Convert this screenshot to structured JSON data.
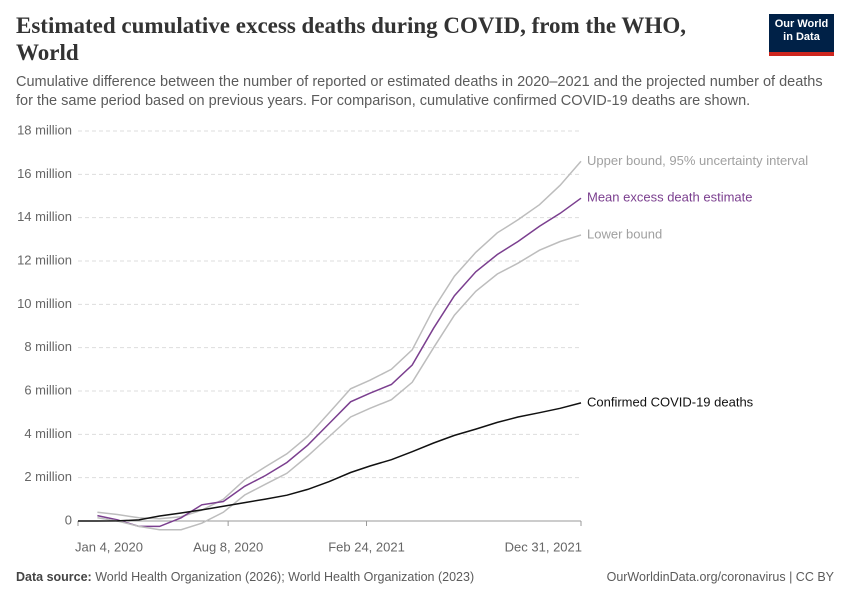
{
  "chart_data": {
    "type": "line",
    "title": "Estimated cumulative excess deaths during COVID, from the WHO, World",
    "subtitle": "Cumulative difference between the number of reported or estimated deaths in 2020–2021 and the projected number of deaths for the same period based on previous years. For comparison, cumulative confirmed COVID-19 deaths are shown.",
    "logo": "Our World in Data",
    "source_label": "Data source:",
    "source": "World Health Organization (2026); World Health Organization (2023)",
    "url": "OurWorldinData.org/coronavirus | CC BY",
    "x": [
      "2020-01-04",
      "2020-02-01",
      "2020-03-01",
      "2020-04-01",
      "2020-05-01",
      "2020-06-01",
      "2020-07-01",
      "2020-08-01",
      "2020-09-01",
      "2020-10-01",
      "2020-11-01",
      "2020-12-01",
      "2021-01-01",
      "2021-02-01",
      "2021-03-01",
      "2021-04-01",
      "2021-05-01",
      "2021-06-01",
      "2021-07-01",
      "2021-08-01",
      "2021-09-01",
      "2021-10-01",
      "2021-11-01",
      "2021-12-01",
      "2021-12-31"
    ],
    "xlim": [
      "2020-01-04",
      "2021-12-31"
    ],
    "xticks": [
      {
        "value": "2020-01-04",
        "label": "Jan 4, 2020"
      },
      {
        "value": "2020-08-08",
        "label": "Aug 8, 2020"
      },
      {
        "value": "2021-02-24",
        "label": "Feb 24, 2021"
      },
      {
        "value": "2021-12-31",
        "label": "Dec 31, 2021"
      }
    ],
    "ylim": [
      0,
      18
    ],
    "yticks": [
      0,
      {
        "value": 2,
        "label": "2 million"
      },
      {
        "value": 4,
        "label": "4 million"
      },
      {
        "value": 6,
        "label": "6 million"
      },
      {
        "value": 8,
        "label": "8 million"
      },
      {
        "value": 10,
        "label": "10 million"
      },
      {
        "value": 12,
        "label": "12 million"
      },
      {
        "value": 14,
        "label": "14 million"
      },
      {
        "value": 16,
        "label": "16 million"
      },
      {
        "value": 18,
        "label": "18 million"
      }
    ],
    "grid": true,
    "series": [
      {
        "name": "Upper bound, 95% uncertainty interval",
        "color": "#bdbdbd",
        "label_color": "#a0a0a0",
        "values": [
          null,
          0.4,
          0.3,
          0.15,
          0.1,
          0.2,
          0.5,
          1.0,
          1.9,
          2.5,
          3.1,
          3.9,
          5.0,
          6.1,
          6.5,
          7.0,
          7.9,
          9.8,
          11.3,
          12.4,
          13.3,
          13.9,
          14.6,
          15.5,
          16.6
        ]
      },
      {
        "name": "Mean excess death estimate",
        "color": "#7b3f8f",
        "label_color": "#7b3f8f",
        "values": [
          null,
          0.25,
          0.05,
          -0.25,
          -0.25,
          0.15,
          0.75,
          0.9,
          1.6,
          2.1,
          2.7,
          3.5,
          4.5,
          5.5,
          5.9,
          6.3,
          7.2,
          8.9,
          10.4,
          11.5,
          12.3,
          12.9,
          13.6,
          14.2,
          14.9
        ]
      },
      {
        "name": "Lower bound",
        "color": "#bdbdbd",
        "label_color": "#a0a0a0",
        "values": [
          null,
          0.15,
          0.0,
          -0.25,
          -0.4,
          -0.4,
          -0.1,
          0.4,
          1.2,
          1.7,
          2.2,
          3.0,
          3.9,
          4.8,
          5.2,
          5.6,
          6.4,
          8.0,
          9.5,
          10.6,
          11.4,
          11.9,
          12.5,
          12.9,
          13.2
        ]
      },
      {
        "name": "Confirmed COVID-19 deaths",
        "color": "#111111",
        "label_color": "#111111",
        "values": [
          0,
          0,
          0.003,
          0.05,
          0.23,
          0.37,
          0.51,
          0.68,
          0.85,
          1.01,
          1.19,
          1.46,
          1.82,
          2.24,
          2.54,
          2.83,
          3.2,
          3.6,
          3.95,
          4.24,
          4.55,
          4.8,
          5.0,
          5.2,
          5.45
        ]
      }
    ]
  }
}
